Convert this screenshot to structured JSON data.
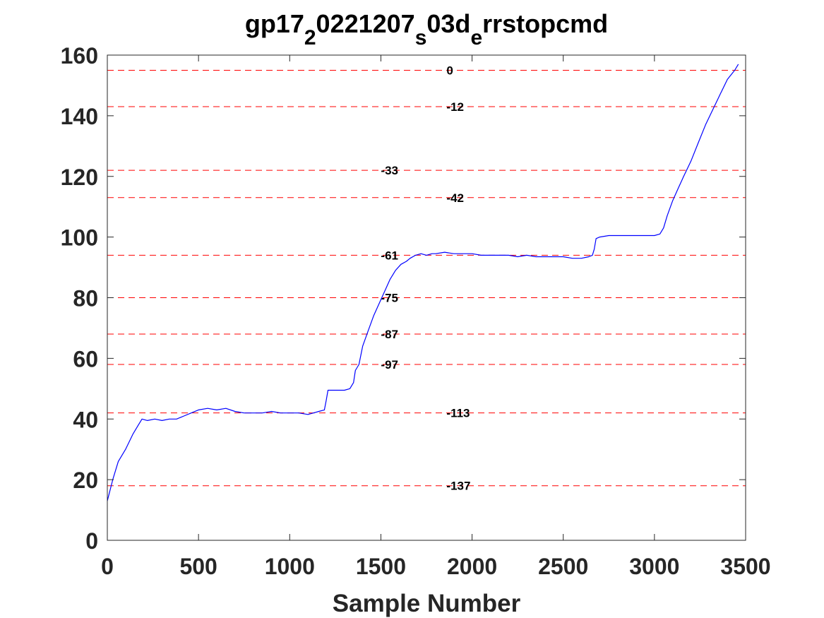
{
  "chart_data": {
    "type": "line",
    "title": {
      "parts": [
        {
          "text": "gp17",
          "sub": false
        },
        {
          "text": "2",
          "sub": true
        },
        {
          "text": "0221207",
          "sub": false
        },
        {
          "text": "s",
          "sub": true
        },
        {
          "text": "03d",
          "sub": false
        },
        {
          "text": "e",
          "sub": true
        },
        {
          "text": "rrstopcmd",
          "sub": false
        }
      ]
    },
    "xlabel": "Sample Number",
    "ylabel": "",
    "xlim": [
      0,
      3500
    ],
    "ylim": [
      0,
      160
    ],
    "xticks": [
      0,
      500,
      1000,
      1500,
      2000,
      2500,
      3000,
      3500
    ],
    "yticks": [
      0,
      20,
      40,
      60,
      80,
      100,
      120,
      140,
      160
    ],
    "xtick_labels": [
      "0",
      "500",
      "1000",
      "1500",
      "2000",
      "2500",
      "3000",
      "3500"
    ],
    "ytick_labels": [
      "0",
      "20",
      "40",
      "60",
      "80",
      "100",
      "120",
      "140",
      "160"
    ],
    "grid": false,
    "series_color": "#0000ff",
    "reference_line_color": "#ff0000",
    "series": [
      {
        "x": [
          0,
          30,
          60,
          100,
          140,
          170,
          190,
          220,
          260,
          300,
          340,
          380,
          420,
          460,
          500,
          550,
          600,
          650,
          700,
          750,
          800,
          850,
          900,
          950,
          1000,
          1050,
          1100,
          1130,
          1160,
          1190,
          1200,
          1210,
          1230,
          1260,
          1300,
          1330,
          1350,
          1360,
          1380,
          1400,
          1430,
          1460,
          1490,
          1520,
          1550,
          1580,
          1610,
          1640,
          1660,
          1690,
          1720,
          1750,
          1780,
          1800,
          1850,
          1900,
          1950,
          2000,
          2050,
          2100,
          2150,
          2200,
          2250,
          2300,
          2350,
          2400,
          2450,
          2500,
          2550,
          2600,
          2640,
          2660,
          2670,
          2680,
          2700,
          2750,
          2800,
          2850,
          2900,
          2950,
          3000,
          3030,
          3050,
          3070,
          3100,
          3130,
          3160,
          3200,
          3240,
          3280,
          3320,
          3360,
          3400,
          3440,
          3460
        ],
        "y": [
          13,
          20,
          26,
          30,
          35,
          38,
          40,
          39.5,
          40,
          39.5,
          40,
          40,
          41,
          42,
          43,
          43.5,
          43,
          43.5,
          42.5,
          42,
          42,
          42,
          42.5,
          42,
          42,
          42,
          41.5,
          42,
          42.5,
          43,
          46,
          49.5,
          49.5,
          49.5,
          49.5,
          50,
          52,
          56,
          58,
          64,
          69,
          74,
          78,
          82,
          86,
          89,
          91,
          92,
          93,
          94,
          94.5,
          94,
          94.5,
          94.5,
          95,
          94.5,
          94.5,
          94.5,
          94,
          94,
          94,
          94,
          93.5,
          94,
          93.5,
          93.5,
          93.5,
          93.5,
          93,
          93,
          93.5,
          94,
          96,
          99.5,
          100,
          100.5,
          100.5,
          100.5,
          100.5,
          100.5,
          100.5,
          101,
          103,
          107,
          112,
          116,
          120,
          125,
          131,
          137,
          142,
          147,
          152,
          155,
          157
        ]
      }
    ],
    "reference_lines": [
      {
        "y": 155,
        "label": "0",
        "label_x": 1860
      },
      {
        "y": 143,
        "label": "-12",
        "label_x": 1860
      },
      {
        "y": 122,
        "label": "-33",
        "label_x": 1500
      },
      {
        "y": 113,
        "label": "-42",
        "label_x": 1860
      },
      {
        "y": 94,
        "label": "-61",
        "label_x": 1500
      },
      {
        "y": 80,
        "label": "-75",
        "label_x": 1500
      },
      {
        "y": 68,
        "label": "-87",
        "label_x": 1500
      },
      {
        "y": 58,
        "label": "-97",
        "label_x": 1500
      },
      {
        "y": 42,
        "label": "-113",
        "label_x": 1860
      },
      {
        "y": 18,
        "label": "-137",
        "label_x": 1860
      }
    ]
  }
}
